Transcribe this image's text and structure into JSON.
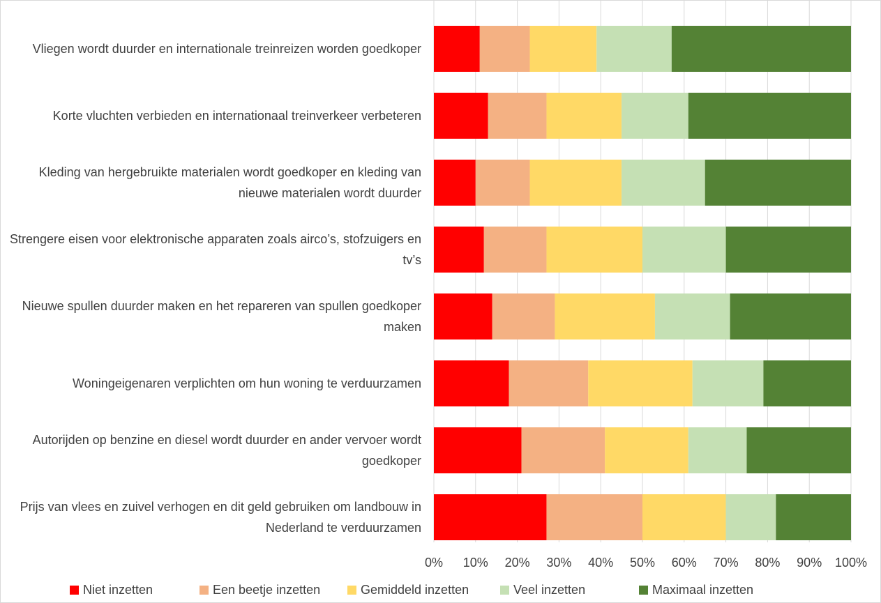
{
  "chart_data": {
    "type": "stacked_barh",
    "categories": [
      "Vliegen wordt duurder en internationale treinreizen worden goedkoper",
      "Korte vluchten verbieden en internationaal treinverkeer verbeteren",
      "Kleding van hergebruikte materialen wordt goedkoper en kleding van nieuwe materialen wordt duurder",
      "Strengere eisen voor elektronische apparaten zoals airco’s, stofzuigers en tv’s",
      "Nieuwe spullen duurder maken en het repareren van spullen goedkoper maken",
      "Woningeigenaren verplichten om hun woning te verduurzamen",
      "Autorijden op benzine en diesel wordt duurder en ander vervoer wordt goedkoper",
      "Prijs van vlees en zuivel verhogen en dit geld gebruiken om landbouw in Nederland te verduurzamen"
    ],
    "series": [
      {
        "name": "Niet inzetten",
        "color": "#ff0000",
        "values": [
          11,
          13,
          10,
          12,
          14,
          18,
          21,
          27
        ]
      },
      {
        "name": "Een beetje inzetten",
        "color": "#f4b183",
        "values": [
          12,
          14,
          13,
          15,
          15,
          19,
          20,
          23
        ]
      },
      {
        "name": "Gemiddeld inzetten",
        "color": "#ffd966",
        "values": [
          16,
          18,
          22,
          23,
          24,
          25,
          20,
          20
        ]
      },
      {
        "name": "Veel inzetten",
        "color": "#c5e0b4",
        "values": [
          18,
          16,
          20,
          20,
          18,
          17,
          14,
          12
        ]
      },
      {
        "name": "Maximaal inzetten",
        "color": "#548235",
        "values": [
          43,
          39,
          35,
          30,
          29,
          21,
          25,
          18
        ]
      }
    ],
    "xlim": [
      0,
      100
    ],
    "xticks": [
      {
        "value": 0,
        "label": "0%"
      },
      {
        "value": 10,
        "label": "10%"
      },
      {
        "value": 20,
        "label": "20%"
      },
      {
        "value": 30,
        "label": "30%"
      },
      {
        "value": 40,
        "label": "40%"
      },
      {
        "value": 50,
        "label": "50%"
      },
      {
        "value": 60,
        "label": "60%"
      },
      {
        "value": 70,
        "label": "70%"
      },
      {
        "value": 80,
        "label": "80%"
      },
      {
        "value": 90,
        "label": "90%"
      },
      {
        "value": 100,
        "label": "100%"
      }
    ],
    "grid": true,
    "legend": "bottom"
  }
}
